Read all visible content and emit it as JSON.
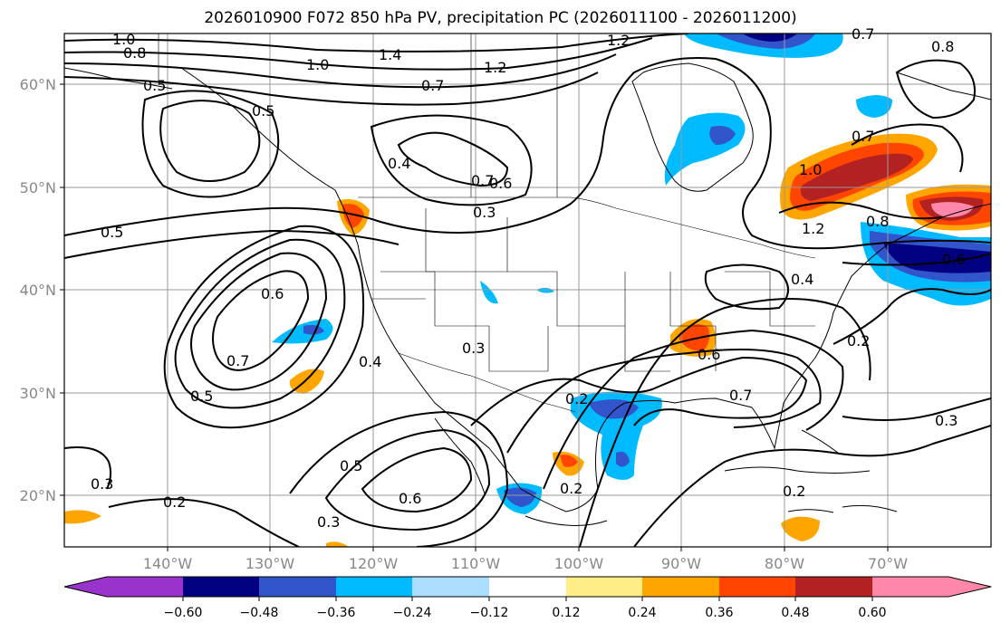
{
  "figure": {
    "title": "2026010900 F072 850 hPa PV, precipitation PC (2026011100 - 2026011200)"
  },
  "map": {
    "lon_ticks": [
      "140°W",
      "130°W",
      "120°W",
      "110°W",
      "100°W",
      "90°W",
      "80°W",
      "70°W"
    ],
    "lat_ticks": [
      "60°N",
      "50°N",
      "40°N",
      "30°N",
      "20°N"
    ],
    "lon_range": [
      -150,
      -60
    ],
    "lat_range": [
      15,
      65
    ],
    "grid": true,
    "contour_labels": [
      "1.0",
      "0.8",
      "1.0",
      "1.4",
      "1.2",
      "1.2",
      "0.7",
      "0.5",
      "0.5",
      "0.4",
      "0.7",
      "0.6",
      "0.3",
      "0.5",
      "0.6",
      "0.7",
      "0.5",
      "0.4",
      "0.3",
      "0.2",
      "0.5",
      "0.6",
      "0.3",
      "0.3",
      "0.2",
      "0.2",
      "0.6",
      "0.7",
      "0.4",
      "1.0",
      "0.7",
      "1.2",
      "0.8",
      "0.2",
      "0.3",
      "0.2",
      "0.6",
      "0.8",
      "0.7"
    ]
  },
  "colorbar": {
    "tick_labels": [
      "−0.60",
      "−0.48",
      "−0.36",
      "−0.24",
      "−0.12",
      "0.12",
      "0.24",
      "0.36",
      "0.48",
      "0.60"
    ],
    "colors": [
      "#9933cc",
      "#000080",
      "#3355cc",
      "#00bbff",
      "#aaddff",
      "#ffffff",
      "#ffee88",
      "#ffa500",
      "#ff4500",
      "#b22222",
      "#ff88aa"
    ]
  }
}
